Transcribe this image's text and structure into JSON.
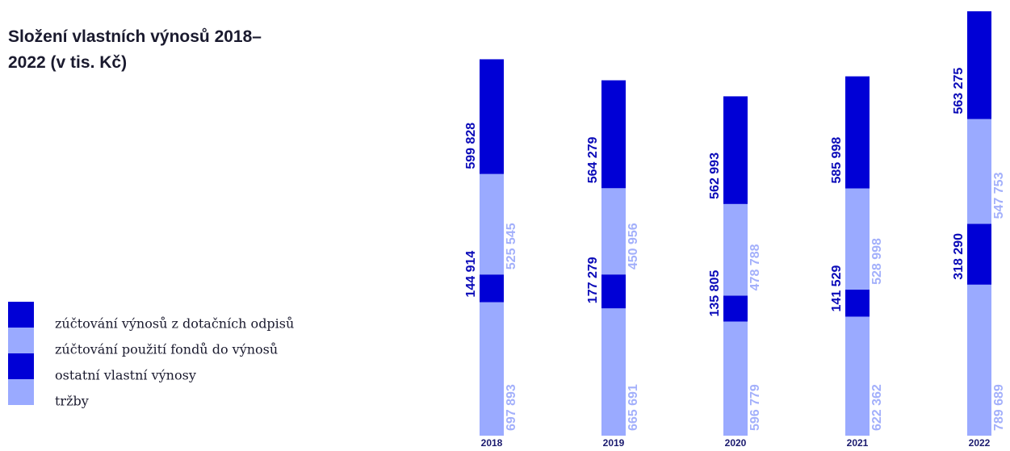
{
  "chart_data": {
    "type": "stacked_bar",
    "title": "Složení vlastních výnosů 2018–2022 (v tis. Kč)",
    "categories": [
      "2018",
      "2019",
      "2020",
      "2021",
      "2022"
    ],
    "series": [
      {
        "name": "tržby",
        "color": "#9aaaff",
        "values": [
          697893,
          665691,
          596779,
          622362,
          789689
        ],
        "value_labels": [
          "697 893",
          "665 691",
          "596 779",
          "622 362",
          "789 689"
        ]
      },
      {
        "name": "ostatní vlastní výnosy",
        "color": "#0000d6",
        "values": [
          144914,
          177279,
          135805,
          141529,
          318290
        ],
        "value_labels": [
          "144 914",
          "177 279",
          "135 805",
          "141 529",
          "318 290"
        ]
      },
      {
        "name": "zúčtování použití fondů do výnosů",
        "color": "#9aaaff",
        "values": [
          525545,
          450956,
          478788,
          528998,
          547753
        ],
        "value_labels": [
          "525 545",
          "450 956",
          "478 788",
          "528 998",
          "547 753"
        ]
      },
      {
        "name": "zúčtování výnosů z dotačních odpisů",
        "color": "#0000d6",
        "values": [
          599828,
          564279,
          562993,
          585998,
          563275
        ],
        "value_labels": [
          "599 828",
          "564 279",
          "562 993",
          "585 998",
          "563 275"
        ]
      }
    ]
  }
}
